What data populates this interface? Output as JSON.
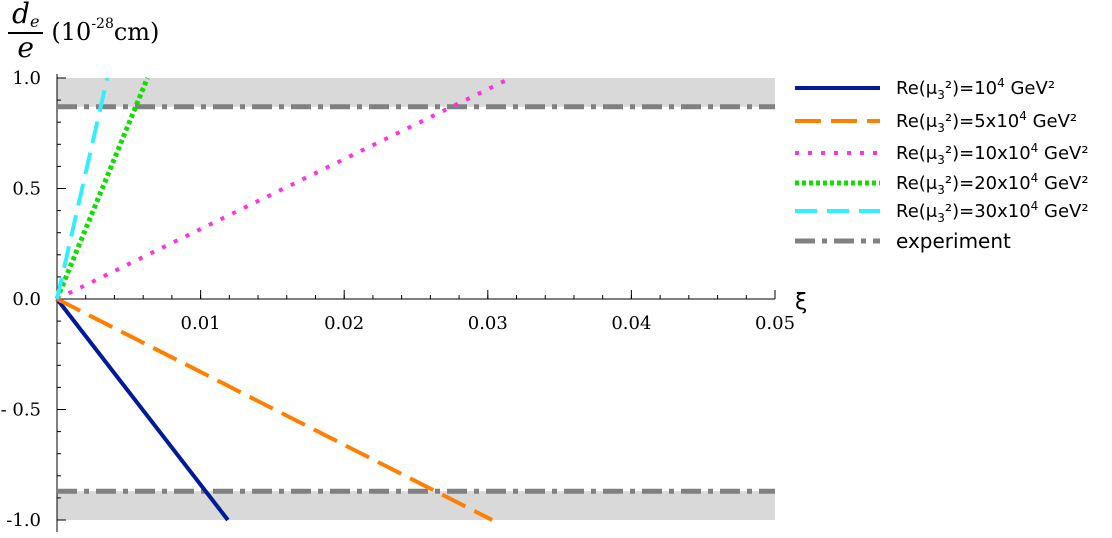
{
  "chart_data": {
    "type": "line",
    "y_label": {
      "fraction_num": "d",
      "fraction_num_sub": "e",
      "fraction_den": "e",
      "unit_open": "(10",
      "unit_exp": "-28",
      "unit_close": "cm)"
    },
    "xlabel": "ξ",
    "xlim": [
      0,
      0.05
    ],
    "ylim": [
      -1.0,
      1.0
    ],
    "x_ticks": [
      {
        "value": 0.01,
        "label": "0.01"
      },
      {
        "value": 0.02,
        "label": "0.02"
      },
      {
        "value": 0.03,
        "label": "0.03"
      },
      {
        "value": 0.04,
        "label": "0.04"
      },
      {
        "value": 0.05,
        "label": "0.05"
      }
    ],
    "y_ticks": [
      {
        "value": 1.0,
        "label": "1.0"
      },
      {
        "value": 0.5,
        "label": "0.5"
      },
      {
        "value": 0.0,
        "label": "0.0"
      },
      {
        "value": -0.5,
        "label": "- 0.5"
      },
      {
        "value": -1.0,
        "label": "-1.0"
      }
    ],
    "experiment": {
      "name": "experiment",
      "value": 0.87,
      "color": "#808080",
      "band_color": "#d9d9d9"
    },
    "series": [
      {
        "name_pre": "Re(μ",
        "name_sub": "3",
        "name_mid": "²)=10",
        "name_sup": "4",
        "name_post": " GeV²",
        "color": "#001a99",
        "dash": "solid",
        "x": [
          0,
          0.0119
        ],
        "y": [
          0,
          -1.0
        ]
      },
      {
        "name_pre": "Re(μ",
        "name_sub": "3",
        "name_mid": "²)=5x10",
        "name_sup": "4",
        "name_post": " GeV²",
        "color": "#ff8000",
        "dash": "long",
        "x": [
          0,
          0.0303
        ],
        "y": [
          0,
          -1.0
        ]
      },
      {
        "name_pre": "Re(μ",
        "name_sub": "3",
        "name_mid": "²)=10x10",
        "name_sup": "4",
        "name_post": " GeV²",
        "color": "#ff33dd",
        "dash": "dot",
        "x": [
          0,
          0.0316
        ],
        "y": [
          0,
          1.0
        ]
      },
      {
        "name_pre": "Re(μ",
        "name_sub": "3",
        "name_mid": "²)=20x10",
        "name_sup": "4",
        "name_post": " GeV²",
        "color": "#11dd00",
        "dash": "dot-thick",
        "x": [
          0,
          0.0063
        ],
        "y": [
          0,
          1.0
        ]
      },
      {
        "name_pre": "Re(μ",
        "name_sub": "3",
        "name_mid": "²)=30x10",
        "name_sup": "4",
        "name_post": " GeV²",
        "color": "#33eeff",
        "dash": "dash",
        "x": [
          0,
          0.0035
        ],
        "y": [
          0,
          1.0
        ]
      }
    ]
  }
}
